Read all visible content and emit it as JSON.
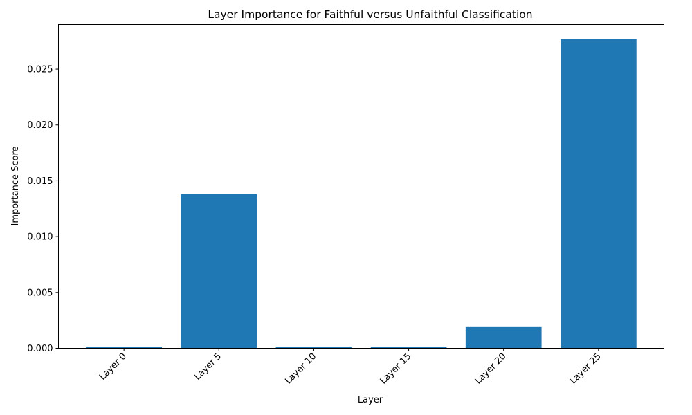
{
  "chart_data": {
    "type": "bar",
    "title": "Layer Importance for Faithful versus Unfaithful Classification",
    "xlabel": "Layer",
    "ylabel": "Importance Score",
    "categories": [
      "Layer 0",
      "Layer 5",
      "Layer 10",
      "Layer 15",
      "Layer 20",
      "Layer 25"
    ],
    "values": [
      0.0001,
      0.0138,
      0.0001,
      0.0001,
      0.0019,
      0.0277
    ],
    "ylim": [
      0,
      0.029
    ],
    "yticks": [
      0.0,
      0.005,
      0.01,
      0.015,
      0.02,
      0.025
    ],
    "ytick_labels": [
      "0.000",
      "0.005",
      "0.010",
      "0.015",
      "0.020",
      "0.025"
    ],
    "xtick_rotation": 45,
    "grid": false,
    "legend": "none",
    "bar_color": "#1f77b4"
  }
}
